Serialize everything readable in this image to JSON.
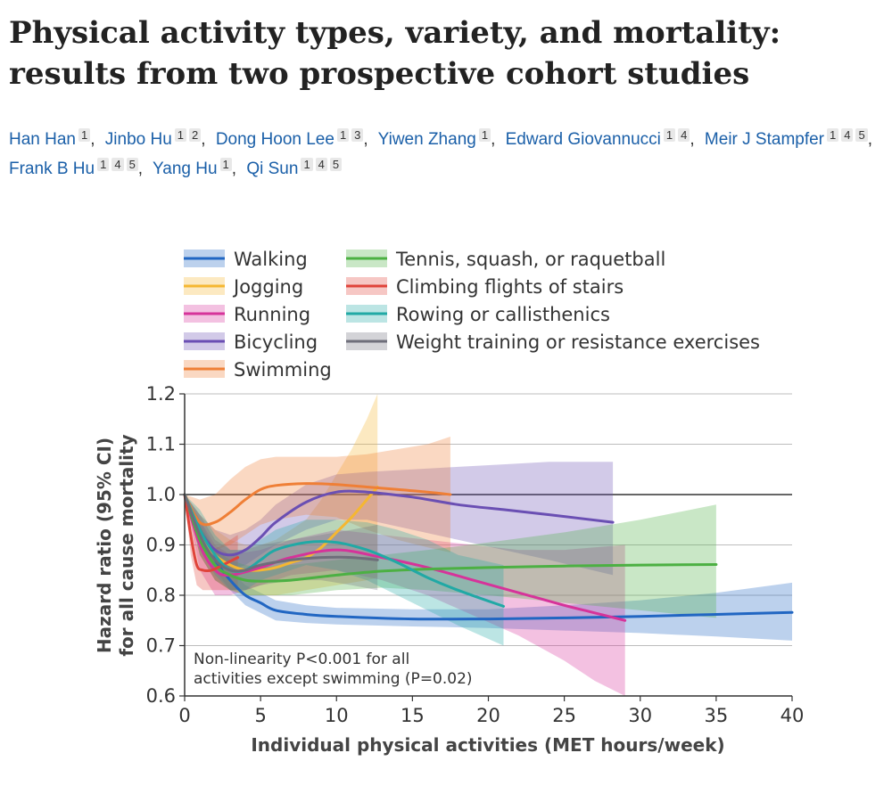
{
  "article": {
    "title": "Physical activity types, variety, and mortality: results from two prospective cohort studies",
    "authors": [
      {
        "name": "Han Han",
        "affiliations": [
          "1"
        ]
      },
      {
        "name": "Jinbo Hu",
        "affiliations": [
          "1",
          "2"
        ]
      },
      {
        "name": "Dong Hoon Lee",
        "affiliations": [
          "1",
          "3"
        ]
      },
      {
        "name": "Yiwen Zhang",
        "affiliations": [
          "1"
        ]
      },
      {
        "name": "Edward Giovannucci",
        "affiliations": [
          "1",
          "4"
        ]
      },
      {
        "name": "Meir J Stampfer",
        "affiliations": [
          "1",
          "4",
          "5"
        ]
      },
      {
        "name": "Frank B Hu",
        "affiliations": [
          "1",
          "4",
          "5"
        ]
      },
      {
        "name": "Yang Hu",
        "affiliations": [
          "1"
        ]
      },
      {
        "name": "Qi Sun",
        "affiliations": [
          "1",
          "4",
          "5"
        ]
      }
    ]
  },
  "chart_data": {
    "type": "line",
    "title": "",
    "xlabel": "Individual physical activities (MET hours/week)",
    "ylabel_line1": "Hazard ratio (95% CI)",
    "ylabel_line2": "for all cause mortality",
    "xlim": [
      0,
      40
    ],
    "ylim": [
      0.6,
      1.2
    ],
    "xticks": [
      0,
      5,
      10,
      15,
      20,
      25,
      30,
      35,
      40
    ],
    "yticks": [
      0.6,
      0.7,
      0.8,
      0.9,
      1.0,
      1.1,
      1.2
    ],
    "ytick_labels": [
      "0.6",
      "0.7",
      "0.8",
      "0.9",
      "1.0",
      "1.1",
      "1.2"
    ],
    "reference_line_y": 1.0,
    "grid": "horizontal",
    "legend_position": "top",
    "annotation_line1": "Non-linearity P<0.001 for all",
    "annotation_line2": "activities except swimming (P=0.02)",
    "series": [
      {
        "name": "Walking",
        "color": "#2166c2",
        "x": [
          0,
          1,
          2,
          3,
          4,
          5,
          6,
          8,
          10,
          15,
          20,
          25,
          30,
          35,
          40
        ],
        "y": [
          1.0,
          0.93,
          0.87,
          0.83,
          0.8,
          0.785,
          0.77,
          0.762,
          0.758,
          0.753,
          0.753,
          0.755,
          0.758,
          0.762,
          0.766
        ],
        "lower": [
          1.0,
          0.91,
          0.85,
          0.81,
          0.78,
          0.765,
          0.75,
          0.745,
          0.742,
          0.738,
          0.735,
          0.73,
          0.725,
          0.718,
          0.71
        ],
        "upper": [
          1.0,
          0.95,
          0.89,
          0.85,
          0.82,
          0.805,
          0.79,
          0.78,
          0.775,
          0.772,
          0.772,
          0.78,
          0.79,
          0.805,
          0.825
        ]
      },
      {
        "name": "Jogging",
        "color": "#f5b731",
        "x": [
          0,
          1,
          2,
          3,
          4,
          5,
          6,
          7,
          8,
          9,
          10,
          11,
          12,
          12.7
        ],
        "y": [
          1.0,
          0.92,
          0.88,
          0.86,
          0.85,
          0.85,
          0.855,
          0.865,
          0.875,
          0.895,
          0.925,
          0.955,
          0.99,
          1.015
        ],
        "lower": [
          1.0,
          0.88,
          0.83,
          0.81,
          0.8,
          0.8,
          0.8,
          0.805,
          0.81,
          0.815,
          0.82,
          0.825,
          0.83,
          0.835
        ],
        "upper": [
          1.0,
          0.96,
          0.93,
          0.91,
          0.9,
          0.9,
          0.91,
          0.93,
          0.95,
          0.99,
          1.04,
          1.09,
          1.15,
          1.2
        ]
      },
      {
        "name": "Running",
        "color": "#d6339a",
        "x": [
          0,
          1,
          2,
          3,
          5,
          7,
          10,
          13,
          16,
          19,
          22,
          25,
          27,
          29
        ],
        "y": [
          1.0,
          0.9,
          0.85,
          0.84,
          0.855,
          0.875,
          0.89,
          0.875,
          0.855,
          0.83,
          0.805,
          0.78,
          0.765,
          0.75
        ],
        "lower": [
          1.0,
          0.85,
          0.8,
          0.8,
          0.82,
          0.84,
          0.85,
          0.83,
          0.8,
          0.76,
          0.72,
          0.67,
          0.63,
          0.6
        ],
        "upper": [
          1.0,
          0.95,
          0.9,
          0.88,
          0.89,
          0.91,
          0.93,
          0.92,
          0.91,
          0.9,
          0.89,
          0.89,
          0.895,
          0.9
        ]
      },
      {
        "name": "Bicycling",
        "color": "#6a4fb3",
        "x": [
          0,
          1,
          2,
          3,
          4,
          5,
          6,
          8,
          10,
          12,
          15,
          18,
          21,
          24,
          28.2
        ],
        "y": [
          1.0,
          0.93,
          0.89,
          0.88,
          0.89,
          0.915,
          0.945,
          0.985,
          1.005,
          1.005,
          0.995,
          0.98,
          0.97,
          0.96,
          0.945
        ],
        "lower": [
          1.0,
          0.9,
          0.86,
          0.85,
          0.86,
          0.88,
          0.9,
          0.93,
          0.95,
          0.95,
          0.93,
          0.91,
          0.89,
          0.87,
          0.84
        ],
        "upper": [
          1.0,
          0.96,
          0.93,
          0.92,
          0.93,
          0.95,
          0.98,
          1.02,
          1.04,
          1.045,
          1.05,
          1.055,
          1.06,
          1.065,
          1.065
        ]
      },
      {
        "name": "Swimming",
        "color": "#ef7f36",
        "x": [
          0,
          1,
          2,
          3,
          4,
          5,
          6,
          8,
          10,
          12,
          14,
          16,
          17.5
        ],
        "y": [
          1.0,
          0.945,
          0.945,
          0.965,
          0.99,
          1.01,
          1.018,
          1.022,
          1.02,
          1.015,
          1.01,
          1.005,
          1.0
        ],
        "lower": [
          1.0,
          0.9,
          0.89,
          0.9,
          0.92,
          0.94,
          0.95,
          0.96,
          0.955,
          0.93,
          0.91,
          0.895,
          0.885
        ],
        "upper": [
          1.0,
          0.99,
          1.0,
          1.03,
          1.055,
          1.07,
          1.075,
          1.075,
          1.075,
          1.08,
          1.09,
          1.1,
          1.115
        ]
      },
      {
        "name": "Tennis, squash, or raquetball",
        "color": "#4cb043",
        "x": [
          0,
          1,
          2,
          3,
          4,
          5,
          7,
          10,
          13,
          16,
          20,
          25,
          30,
          35
        ],
        "y": [
          1.0,
          0.91,
          0.86,
          0.84,
          0.83,
          0.828,
          0.83,
          0.84,
          0.848,
          0.852,
          0.855,
          0.858,
          0.86,
          0.861
        ],
        "lower": [
          1.0,
          0.88,
          0.83,
          0.81,
          0.8,
          0.8,
          0.8,
          0.81,
          0.815,
          0.81,
          0.8,
          0.785,
          0.77,
          0.755
        ],
        "upper": [
          1.0,
          0.94,
          0.89,
          0.87,
          0.86,
          0.855,
          0.86,
          0.87,
          0.88,
          0.89,
          0.905,
          0.925,
          0.95,
          0.98
        ]
      },
      {
        "name": "Climbing flights of stairs",
        "color": "#e0443a",
        "x": [
          0,
          0.4,
          0.8,
          1.2,
          1.8,
          2.5,
          3.5
        ],
        "y": [
          1.0,
          0.92,
          0.86,
          0.85,
          0.85,
          0.86,
          0.875
        ],
        "lower": [
          1.0,
          0.88,
          0.82,
          0.81,
          0.81,
          0.81,
          0.81
        ],
        "upper": [
          1.0,
          0.96,
          0.9,
          0.89,
          0.89,
          0.9,
          0.92
        ]
      },
      {
        "name": "Rowing or callisthenics",
        "color": "#21a9a5",
        "x": [
          0,
          1,
          2,
          3,
          4,
          5,
          6,
          8,
          10,
          12,
          14,
          16,
          18,
          21
        ],
        "y": [
          1.0,
          0.93,
          0.88,
          0.85,
          0.85,
          0.87,
          0.89,
          0.905,
          0.905,
          0.89,
          0.865,
          0.835,
          0.81,
          0.778
        ],
        "lower": [
          1.0,
          0.89,
          0.84,
          0.81,
          0.81,
          0.83,
          0.84,
          0.86,
          0.85,
          0.83,
          0.8,
          0.77,
          0.74,
          0.7
        ],
        "upper": [
          1.0,
          0.97,
          0.92,
          0.89,
          0.89,
          0.91,
          0.93,
          0.95,
          0.95,
          0.945,
          0.93,
          0.91,
          0.88,
          0.86
        ]
      },
      {
        "name": "Weight training or resistance exercises",
        "color": "#6e6e7a",
        "x": [
          0,
          1,
          2,
          3,
          4,
          5,
          7,
          9,
          11,
          12.7
        ],
        "y": [
          1.0,
          0.92,
          0.87,
          0.85,
          0.85,
          0.86,
          0.87,
          0.875,
          0.875,
          0.87
        ],
        "lower": [
          1.0,
          0.88,
          0.83,
          0.81,
          0.81,
          0.82,
          0.83,
          0.83,
          0.82,
          0.81
        ],
        "upper": [
          1.0,
          0.96,
          0.91,
          0.89,
          0.89,
          0.9,
          0.91,
          0.92,
          0.93,
          0.94
        ]
      }
    ]
  }
}
